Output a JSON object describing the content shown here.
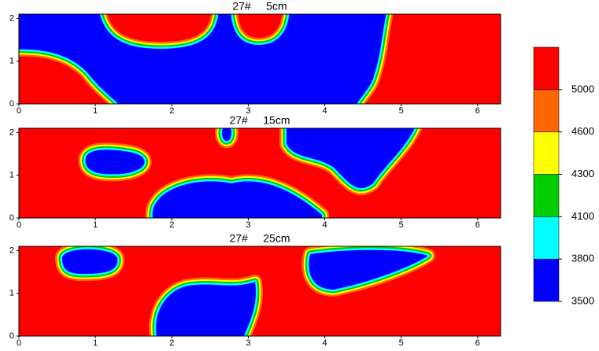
{
  "chart_data": [
    {
      "type": "contour",
      "title": "27#     5cm",
      "xlim": [
        0,
        6.3
      ],
      "ylim": [
        0,
        2.1
      ],
      "xticks": [
        0,
        1,
        2,
        3,
        4,
        5,
        6
      ],
      "yticks": [
        0,
        1,
        2
      ],
      "background": 0
    },
    {
      "type": "contour",
      "title": "27#     15cm",
      "xlim": [
        0,
        6.3
      ],
      "ylim": [
        0,
        2.1
      ],
      "xticks": [
        0,
        1,
        2,
        3,
        4,
        5,
        6
      ],
      "yticks": [
        0,
        1,
        2
      ],
      "background": 5
    },
    {
      "type": "contour",
      "title": "27#     25cm",
      "xlim": [
        0,
        6.3
      ],
      "ylim": [
        0,
        2.1
      ],
      "xticks": [
        0,
        1,
        2,
        3,
        4,
        5,
        6
      ],
      "yticks": [
        0,
        1,
        2
      ],
      "background": 5
    }
  ],
  "colorbar": {
    "ticks": [
      3500,
      3800,
      4100,
      4300,
      4600,
      5000
    ],
    "colors": [
      "#0000ff",
      "#00ffff",
      "#00cc00",
      "#ffff00",
      "#ff6600",
      "#ff0000"
    ]
  }
}
